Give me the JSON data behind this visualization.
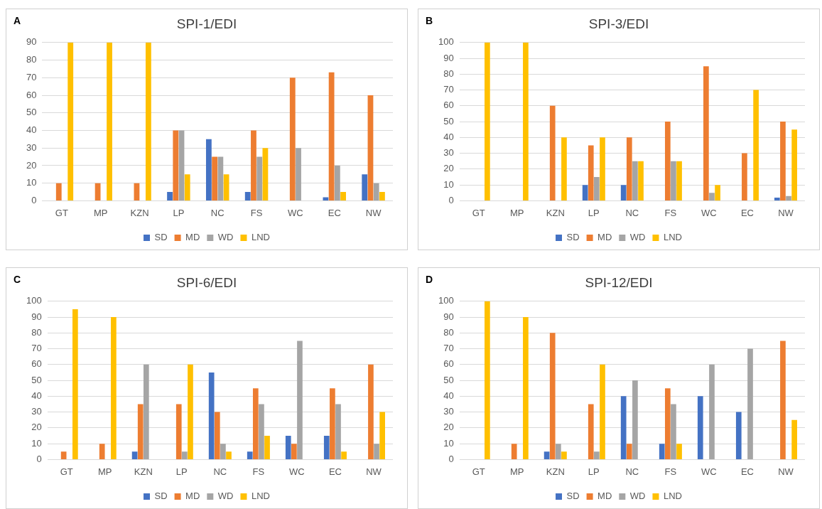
{
  "chart_data": [
    {
      "type": "bar",
      "title": "SPI-1/EDI",
      "annotations": [
        "A"
      ],
      "categories": [
        "GT",
        "MP",
        "KZN",
        "LP",
        "NC",
        "FS",
        "WC",
        "EC",
        "NW"
      ],
      "ylim": [
        0,
        90
      ],
      "yticks": [
        0,
        10,
        20,
        30,
        40,
        50,
        60,
        70,
        80,
        90
      ],
      "grid": "y",
      "legend": "bottom",
      "series": [
        {
          "name": "SD",
          "color": "#4472c4",
          "values": [
            0,
            0,
            0,
            5,
            35,
            5,
            0,
            2,
            15
          ]
        },
        {
          "name": "MD",
          "color": "#ed7d31",
          "values": [
            10,
            10,
            10,
            40,
            25,
            40,
            70,
            73,
            60
          ]
        },
        {
          "name": "WD",
          "color": "#a5a5a5",
          "values": [
            0,
            0,
            0,
            40,
            25,
            25,
            30,
            20,
            10
          ]
        },
        {
          "name": "LND",
          "color": "#ffc000",
          "values": [
            90,
            90,
            90,
            15,
            15,
            30,
            0,
            5,
            5
          ]
        }
      ]
    },
    {
      "type": "bar",
      "title": "SPI-3/EDI",
      "annotations": [
        "B"
      ],
      "categories": [
        "GT",
        "MP",
        "KZN",
        "LP",
        "NC",
        "FS",
        "WC",
        "EC",
        "NW"
      ],
      "ylim": [
        0,
        100
      ],
      "yticks": [
        0,
        10,
        20,
        30,
        40,
        50,
        60,
        70,
        80,
        90,
        100
      ],
      "grid": "y",
      "legend": "bottom",
      "series": [
        {
          "name": "SD",
          "color": "#4472c4",
          "values": [
            0,
            0,
            0,
            10,
            10,
            0,
            0,
            0,
            2
          ]
        },
        {
          "name": "MD",
          "color": "#ed7d31",
          "values": [
            0,
            0,
            60,
            35,
            40,
            50,
            85,
            30,
            50
          ]
        },
        {
          "name": "WD",
          "color": "#a5a5a5",
          "values": [
            0,
            0,
            0,
            15,
            25,
            25,
            5,
            0,
            3
          ]
        },
        {
          "name": "LND",
          "color": "#ffc000",
          "values": [
            100,
            100,
            40,
            40,
            25,
            25,
            10,
            70,
            45
          ]
        }
      ]
    },
    {
      "type": "bar",
      "title": "SPI-6/EDI",
      "annotations": [
        "C"
      ],
      "categories": [
        "GT",
        "MP",
        "KZN",
        "LP",
        "NC",
        "FS",
        "WC",
        "EC",
        "NW"
      ],
      "ylim": [
        0,
        100
      ],
      "yticks": [
        0,
        10,
        20,
        30,
        40,
        50,
        60,
        70,
        80,
        90,
        100
      ],
      "grid": "y",
      "legend": "bottom",
      "series": [
        {
          "name": "SD",
          "color": "#4472c4",
          "values": [
            0,
            0,
            5,
            0,
            55,
            5,
            15,
            15,
            0
          ]
        },
        {
          "name": "MD",
          "color": "#ed7d31",
          "values": [
            5,
            10,
            35,
            35,
            30,
            45,
            10,
            45,
            60
          ]
        },
        {
          "name": "WD",
          "color": "#a5a5a5",
          "values": [
            0,
            0,
            60,
            5,
            10,
            35,
            75,
            35,
            10
          ]
        },
        {
          "name": "LND",
          "color": "#ffc000",
          "values": [
            95,
            90,
            0,
            60,
            5,
            15,
            0,
            5,
            30
          ]
        }
      ]
    },
    {
      "type": "bar",
      "title": "SPI-12/EDI",
      "annotations": [
        "D"
      ],
      "categories": [
        "GT",
        "MP",
        "KZN",
        "LP",
        "NC",
        "FS",
        "WC",
        "EC",
        "NW"
      ],
      "ylim": [
        0,
        100
      ],
      "yticks": [
        0,
        10,
        20,
        30,
        40,
        50,
        60,
        70,
        80,
        90,
        100
      ],
      "grid": "y",
      "legend": "bottom",
      "series": [
        {
          "name": "SD",
          "color": "#4472c4",
          "values": [
            0,
            0,
            5,
            0,
            40,
            10,
            40,
            30,
            0
          ]
        },
        {
          "name": "MD",
          "color": "#ed7d31",
          "values": [
            0,
            10,
            80,
            35,
            10,
            45,
            0,
            0,
            75
          ]
        },
        {
          "name": "WD",
          "color": "#a5a5a5",
          "values": [
            0,
            0,
            10,
            5,
            50,
            35,
            60,
            70,
            0
          ]
        },
        {
          "name": "LND",
          "color": "#ffc000",
          "values": [
            100,
            90,
            5,
            60,
            0,
            10,
            0,
            0,
            25
          ]
        }
      ]
    }
  ]
}
